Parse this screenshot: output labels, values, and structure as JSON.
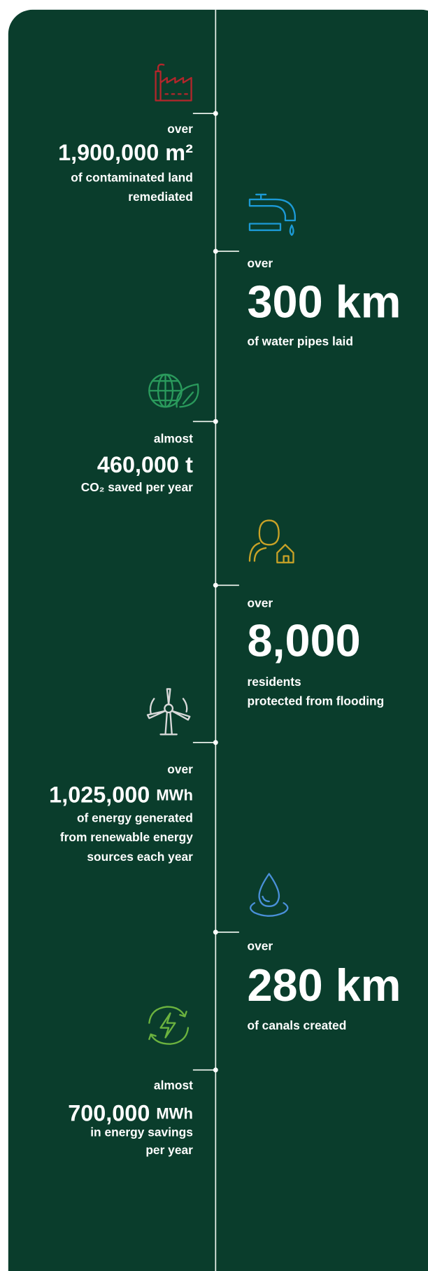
{
  "items": [
    {
      "qualifier": "over",
      "value": "1,900,000",
      "unit": "m²",
      "description": [
        "of contaminated land",
        "remediated"
      ]
    },
    {
      "qualifier": "over",
      "value": "300",
      "unit": "km",
      "description": [
        "of water pipes laid"
      ]
    },
    {
      "qualifier": "almost",
      "value": "460,000",
      "unit": "t",
      "description": [
        "CO₂ saved per year"
      ]
    },
    {
      "qualifier": "over",
      "value": "8,000",
      "description": [
        "residents",
        "protected from flooding"
      ]
    },
    {
      "qualifier": "over",
      "value": "1,025,000",
      "unit": "MWh",
      "description": [
        "of energy generated",
        "from renewable energy",
        "sources each year"
      ]
    },
    {
      "qualifier": "over",
      "value": "280",
      "unit": "km",
      "description": [
        "of canals created"
      ]
    },
    {
      "qualifier": "almost",
      "value": "700,000",
      "unit": "MWh",
      "description": [
        "in energy savings",
        "per year"
      ]
    }
  ]
}
